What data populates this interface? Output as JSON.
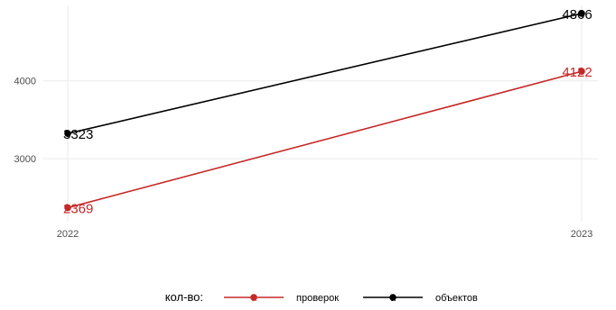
{
  "chart_data": {
    "type": "line",
    "x": [
      "2022",
      "2023"
    ],
    "ylim": [
      2190,
      4970
    ],
    "yticks": [
      3000,
      4000
    ],
    "grid": true,
    "legend_position": "bottom",
    "legend_title": "кол-во:",
    "series": [
      {
        "name": "проверок",
        "values": [
          2369,
          4122
        ],
        "labels": [
          "2369",
          "4122"
        ],
        "color": "#c62828"
      },
      {
        "name": "объектов",
        "values": [
          3323,
          4866
        ],
        "labels": [
          "3323",
          "4866"
        ],
        "color": "#000000"
      }
    ]
  }
}
